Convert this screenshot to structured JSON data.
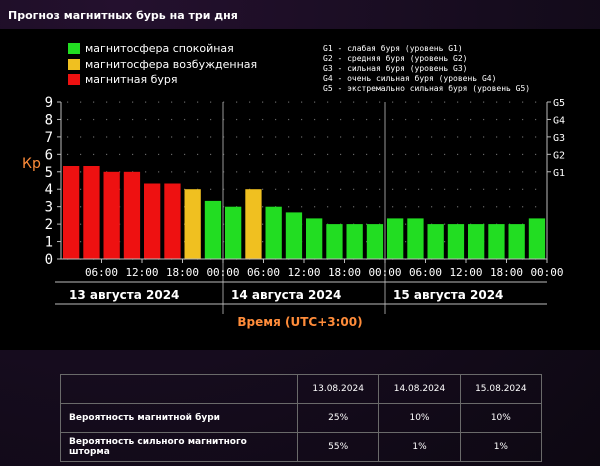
{
  "page_title": "Прогноз магнитных бурь на три дня",
  "legend": {
    "items": [
      {
        "label": "магнитосфера спокойная",
        "color": "#22dd22"
      },
      {
        "label": "магнитосфера возбужденная",
        "color": "#f0c020"
      },
      {
        "label": "магнитная буря",
        "color": "#ee1111"
      }
    ],
    "storm_levels": [
      "G1 - слабая буря (уровень G1)",
      "G2 - средняя буря (уровень G2)",
      "G3 - сильная буря (уровень G3)",
      "G4 - очень сильная буря (уровень G4)",
      "G5 - экстремально сильная буря (уровень G5)"
    ]
  },
  "chart_data": {
    "type": "bar",
    "ylabel": "Кр",
    "xlabel": "Время (UTC+3:00)",
    "ylim": [
      0,
      9
    ],
    "y_ticks": [
      "0",
      "1",
      "2",
      "3",
      "4",
      "5",
      "6",
      "7",
      "8",
      "9"
    ],
    "right_axis_labels": [
      {
        "label": "G1",
        "kp": 5
      },
      {
        "label": "G2",
        "kp": 6
      },
      {
        "label": "G3",
        "kp": 7
      },
      {
        "label": "G4",
        "kp": 8
      },
      {
        "label": "G5",
        "kp": 9
      }
    ],
    "x_tick_labels": [
      "06:00",
      "12:00",
      "18:00",
      "00:00",
      "06:00",
      "12:00",
      "18:00",
      "00:00",
      "06:00",
      "12:00",
      "18:00",
      "00:00"
    ],
    "days": [
      "13 августа 2024",
      "14 августа 2024",
      "15 августа 2024"
    ],
    "values": [
      5.33,
      5.33,
      5.0,
      5.0,
      4.33,
      4.33,
      4.0,
      3.33,
      3.0,
      4.0,
      3.0,
      2.67,
      2.33,
      2.0,
      2.0,
      2.0,
      2.33,
      2.33,
      2.0,
      2.0,
      2.0,
      2.0,
      2.0,
      2.33
    ],
    "colors": {
      "quiet": "#22dd22",
      "active": "#f0c020",
      "storm": "#ee1111"
    },
    "bar_levels": [
      "storm",
      "storm",
      "storm",
      "storm",
      "storm",
      "storm",
      "active",
      "quiet",
      "quiet",
      "active",
      "quiet",
      "quiet",
      "quiet",
      "quiet",
      "quiet",
      "quiet",
      "quiet",
      "quiet",
      "quiet",
      "quiet",
      "quiet",
      "quiet",
      "quiet",
      "quiet"
    ]
  },
  "table": {
    "dates": [
      "13.08.2024",
      "14.08.2024",
      "15.08.2024"
    ],
    "rows": [
      {
        "label": "Вероятность магнитной бури",
        "values": [
          "25%",
          "10%",
          "10%"
        ]
      },
      {
        "label": "Вероятность сильного магнитного шторма",
        "values": [
          "55%",
          "1%",
          "1%"
        ]
      }
    ]
  }
}
